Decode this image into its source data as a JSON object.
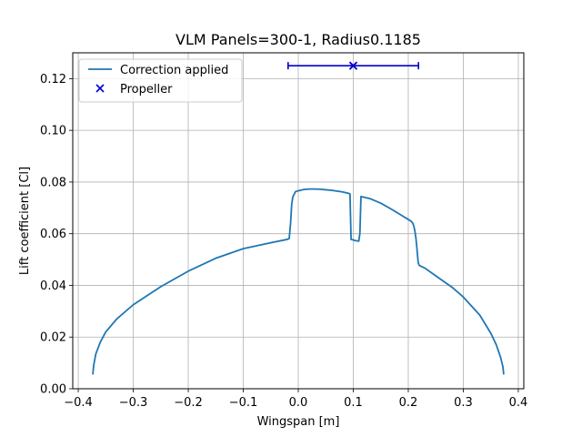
{
  "chart_data": {
    "type": "line",
    "title": "VLM Panels=300-1, Radius0.1185",
    "xlabel": "Wingspan [m]",
    "ylabel": "Lift coefficient [Cl]",
    "xlim": [
      -0.41,
      0.41
    ],
    "ylim": [
      0.0,
      0.13
    ],
    "xticks": [
      -0.4,
      -0.3,
      -0.2,
      -0.1,
      0.0,
      0.1,
      0.2,
      0.3,
      0.4
    ],
    "xtick_labels": [
      "−0.4",
      "−0.3",
      "−0.2",
      "−0.1",
      "0.0",
      "0.1",
      "0.2",
      "0.3",
      "0.4"
    ],
    "yticks": [
      0.0,
      0.02,
      0.04,
      0.06,
      0.08,
      0.1,
      0.12
    ],
    "ytick_labels": [
      "0.00",
      "0.02",
      "0.04",
      "0.06",
      "0.08",
      "0.10",
      "0.12"
    ],
    "grid": true,
    "legend_position": "top-left",
    "series": [
      {
        "name": "Correction applied",
        "color": "#1f77b4",
        "x": [
          -0.3735,
          -0.372,
          -0.368,
          -0.36,
          -0.35,
          -0.33,
          -0.3,
          -0.25,
          -0.2,
          -0.15,
          -0.1,
          -0.05,
          -0.02,
          -0.0165,
          -0.014,
          -0.012,
          -0.01,
          -0.005,
          0.0,
          0.01,
          0.02,
          0.03,
          0.04,
          0.05,
          0.06,
          0.07,
          0.08,
          0.09,
          0.094,
          0.096,
          0.1,
          0.104,
          0.108,
          0.11,
          0.112,
          0.114,
          0.13,
          0.15,
          0.17,
          0.19,
          0.2,
          0.206,
          0.208,
          0.21,
          0.212,
          0.214,
          0.216,
          0.218,
          0.22,
          0.23,
          0.25,
          0.28,
          0.3,
          0.33,
          0.35,
          0.36,
          0.368,
          0.372,
          0.3735
        ],
        "y": [
          0.0055,
          0.009,
          0.0135,
          0.018,
          0.022,
          0.027,
          0.0325,
          0.0395,
          0.0455,
          0.0505,
          0.0542,
          0.0565,
          0.0578,
          0.0581,
          0.064,
          0.0712,
          0.0742,
          0.0763,
          0.0766,
          0.0771,
          0.0773,
          0.0773,
          0.0772,
          0.077,
          0.0768,
          0.0765,
          0.0762,
          0.0757,
          0.0754,
          0.0578,
          0.0576,
          0.0573,
          0.0572,
          0.0571,
          0.0601,
          0.0744,
          0.0736,
          0.0718,
          0.0694,
          0.0668,
          0.0655,
          0.0647,
          0.0641,
          0.063,
          0.061,
          0.0581,
          0.0536,
          0.0488,
          0.0477,
          0.0467,
          0.0437,
          0.0392,
          0.0355,
          0.0285,
          0.0215,
          0.017,
          0.012,
          0.0085,
          0.0055
        ]
      },
      {
        "name": "Propeller",
        "type": "scatter",
        "marker": "x",
        "color": "#0000cc",
        "x": [
          0.1
        ],
        "y": [
          0.125
        ],
        "xerr": [
          0.1185
        ]
      }
    ]
  }
}
